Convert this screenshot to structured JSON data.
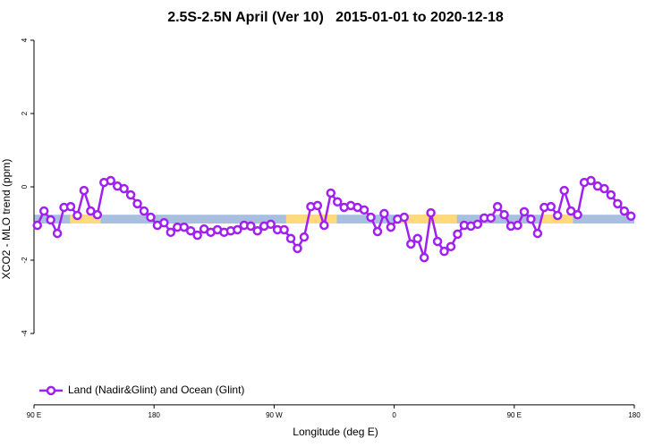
{
  "chart_data": {
    "type": "line",
    "title": "2.5S-2.5N April (Ver 10)   2015-01-01 to 2020-12-18",
    "xlabel": "Longitude (deg E)",
    "ylabel": "XCO2 - MLO trend (ppm)",
    "xlim": [
      90,
      540
    ],
    "ylim": [
      -5.9,
      4.2
    ],
    "xticks": [
      {
        "value": 90,
        "label": "90 E"
      },
      {
        "value": 180,
        "label": "180"
      },
      {
        "value": 270,
        "label": "90 W"
      },
      {
        "value": 360,
        "label": "0"
      },
      {
        "value": 450,
        "label": "90 E"
      },
      {
        "value": 540,
        "label": "180"
      }
    ],
    "yticks": [
      4,
      2,
      0,
      -2,
      -4
    ],
    "band": {
      "y": [
        -1.0,
        -0.76
      ],
      "color": "#a9bfe0",
      "highlight_color": "#ffd97a",
      "highlights": [
        [
          117,
          140
        ],
        [
          279,
          317
        ],
        [
          365,
          407
        ],
        [
          470,
          494
        ]
      ]
    },
    "legend_position": "bottom-left",
    "x": [
      92.5,
      97.5,
      102.5,
      107.5,
      112.5,
      117.5,
      122.5,
      127.5,
      132.5,
      137.5,
      142.5,
      147.5,
      152.5,
      157.5,
      162.5,
      167.5,
      172.5,
      177.5,
      182.5,
      187.5,
      192.5,
      197.5,
      202.5,
      207.5,
      212.5,
      217.5,
      222.5,
      227.5,
      232.5,
      237.5,
      242.5,
      247.5,
      252.5,
      257.5,
      262.5,
      267.5,
      272.5,
      277.5,
      282.5,
      287.5,
      292.5,
      297.5,
      302.5,
      307.5,
      312.5,
      317.5,
      322.5,
      327.5,
      332.5,
      337.5,
      342.5,
      347.5,
      352.5,
      357.5,
      362.5,
      367.5,
      372.5,
      377.5,
      382.5,
      387.5,
      392.5,
      397.5,
      402.5,
      407.5,
      412.5,
      417.5,
      422.5,
      427.5,
      432.5,
      437.5,
      442.5,
      447.5,
      452.5,
      457.5,
      462.5,
      467.5,
      472.5,
      477.5,
      482.5,
      487.5,
      492.5,
      497.5,
      502.5,
      507.5,
      512.5,
      517.5,
      522.5,
      527.5,
      532.5,
      537.5
    ],
    "series": [
      {
        "name": "Land (Nadir&Glint) and Ocean (Glint)",
        "color": "#a020f0",
        "values": [
          -1.05,
          -0.66,
          -0.9,
          -1.27,
          -0.56,
          -0.54,
          -0.78,
          -0.1,
          -0.66,
          -0.76,
          0.12,
          0.17,
          0.02,
          -0.05,
          -0.22,
          -0.46,
          -0.66,
          -0.83,
          -1.05,
          -0.98,
          -1.24,
          -1.1,
          -1.1,
          -1.2,
          -1.32,
          -1.15,
          -1.24,
          -1.17,
          -1.24,
          -1.2,
          -1.17,
          -1.05,
          -1.07,
          -1.2,
          -1.07,
          -1.02,
          -1.17,
          -1.17,
          -1.41,
          -1.68,
          -1.37,
          -0.54,
          -0.51,
          -1.05,
          -0.17,
          -0.41,
          -0.56,
          -0.51,
          -0.56,
          -0.63,
          -0.83,
          -1.22,
          -0.73,
          -1.1,
          -0.88,
          -0.83,
          -1.56,
          -1.41,
          -1.93,
          -0.71,
          -1.49,
          -1.76,
          -1.63,
          -1.29,
          -1.05,
          -1.07,
          -1.02,
          -0.85,
          -0.85,
          -0.54,
          -0.76,
          -1.07,
          -1.05,
          -0.68,
          -0.88,
          -1.27,
          -0.56,
          -0.54,
          -0.78,
          -0.1,
          -0.66,
          -0.76,
          0.12,
          0.17,
          0.02,
          -0.05,
          -0.22,
          -0.46,
          -0.66,
          -0.8
        ]
      }
    ]
  }
}
